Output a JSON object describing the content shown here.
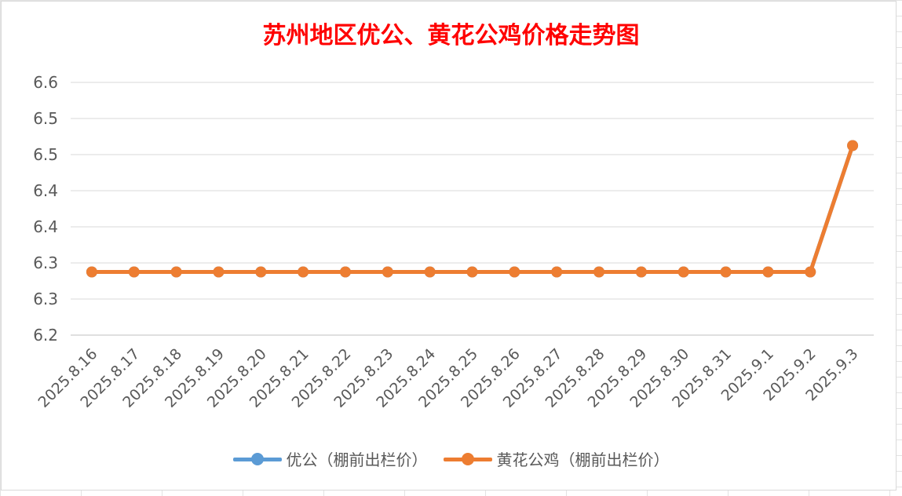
{
  "chart_data": {
    "type": "line",
    "title": "苏州地区优公、黄花公鸡价格走势图",
    "categories": [
      "2025.8.16",
      "2025.8.17",
      "2025.8.18",
      "2025.8.19",
      "2025.8.20",
      "2025.8.21",
      "2025.8.22",
      "2025.8.23",
      "2025.8.24",
      "2025.8.25",
      "2025.8.26",
      "2025.8.27",
      "2025.8.28",
      "2025.8.29",
      "2025.8.30",
      "2025.8.31",
      "2025.9.1",
      "2025.9.2",
      "2025.9.3"
    ],
    "series": [
      {
        "name": "优公（棚前出栏价）",
        "color": "#5b9bd5",
        "values": [
          6.3,
          6.3,
          6.3,
          6.3,
          6.3,
          6.3,
          6.3,
          6.3,
          6.3,
          6.3,
          6.3,
          6.3,
          6.3,
          6.3,
          6.3,
          6.3,
          6.3,
          6.3,
          6.5
        ]
      },
      {
        "name": "黄花公鸡（棚前出栏价）",
        "color": "#ed7d31",
        "values": [
          6.3,
          6.3,
          6.3,
          6.3,
          6.3,
          6.3,
          6.3,
          6.3,
          6.3,
          6.3,
          6.3,
          6.3,
          6.3,
          6.3,
          6.3,
          6.3,
          6.3,
          6.3,
          6.5
        ]
      }
    ],
    "ylim": [
      6.2,
      6.6
    ],
    "y_tick_labels": [
      "6.2",
      "6.3",
      "6.3",
      "6.4",
      "6.4",
      "6.5",
      "6.5",
      "6.6"
    ],
    "grid": true,
    "legend": "bottom"
  }
}
